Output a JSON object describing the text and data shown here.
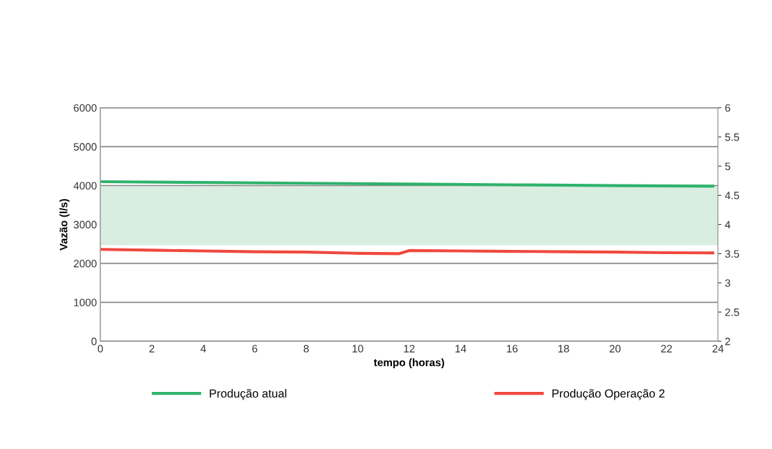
{
  "chart_data": {
    "type": "line",
    "xlabel": "tempo (horas)",
    "ylabel": "Vazão (l/s)",
    "xlim": [
      0,
      24
    ],
    "xticks": [
      0,
      2,
      4,
      6,
      8,
      10,
      12,
      14,
      16,
      18,
      20,
      22,
      24
    ],
    "ylim": [
      0,
      6000
    ],
    "yticks": [
      0,
      1000,
      2000,
      3000,
      4000,
      5000,
      6000
    ],
    "y2lim": [
      2,
      6
    ],
    "y2ticks": [
      2,
      2.5,
      3,
      3.5,
      4,
      4.5,
      5,
      5.5,
      6
    ],
    "grid": "y",
    "legend": "bottom",
    "line_style": "solid",
    "marker": "none",
    "bands": [
      {
        "axis": "y",
        "from": 2470,
        "to": 3980,
        "color": "#d9ede0"
      }
    ],
    "series": [
      {
        "name": "Produção atual",
        "color": "#2fb36b",
        "x": [
          0,
          4,
          8,
          12,
          16,
          20,
          23.8
        ],
        "values": [
          4100,
          4080,
          4060,
          4040,
          4020,
          4000,
          3985
        ]
      },
      {
        "name": "Produção Operação 2",
        "color": "#f0483e",
        "x": [
          0,
          2,
          4,
          6,
          8,
          10,
          11.6,
          12,
          14,
          16,
          18,
          20,
          22,
          23.8
        ],
        "values": [
          2360,
          2340,
          2320,
          2300,
          2290,
          2260,
          2250,
          2330,
          2320,
          2310,
          2300,
          2290,
          2275,
          2270
        ]
      }
    ]
  }
}
